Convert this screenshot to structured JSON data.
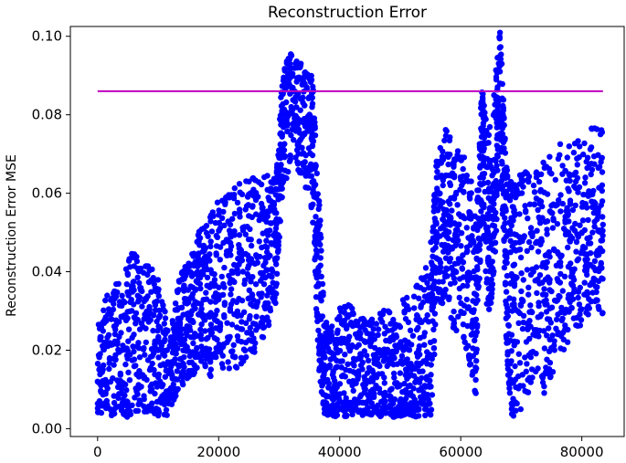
{
  "chart_data": {
    "type": "scatter",
    "title": "Reconstruction Error",
    "xlabel": "",
    "ylabel": "Reconstruction Error MSE",
    "xlim": [
      -4500,
      87000
    ],
    "ylim": [
      -0.002,
      0.1025
    ],
    "x_ticks": [
      0,
      20000,
      40000,
      60000,
      80000
    ],
    "x_tick_labels": [
      "0",
      "20000",
      "40000",
      "60000",
      "80000"
    ],
    "y_ticks": [
      0.0,
      0.02,
      0.04,
      0.06,
      0.08,
      0.1
    ],
    "y_tick_labels": [
      "0.00",
      "0.02",
      "0.04",
      "0.06",
      "0.08",
      "0.10"
    ],
    "grid": false,
    "threshold": {
      "y": 0.086,
      "x_start": 0,
      "x_end": 83500,
      "color": "#c000c0"
    },
    "series": [
      {
        "color": "#0000ff",
        "x": [
          0,
          2000,
          4000,
          6000,
          8000,
          10000,
          12000,
          13500,
          15000,
          16500,
          18000,
          20000,
          22000,
          24000,
          26000,
          28000,
          29500,
          30500,
          32000,
          34000,
          35500,
          36500,
          37500,
          39000,
          41000,
          43000,
          45000,
          47000,
          49000,
          51000,
          53000,
          55000,
          56000,
          57500,
          59000,
          61000,
          62500,
          63500,
          64500,
          65500,
          66500,
          67500,
          68500,
          70000,
          72000,
          74000,
          76000,
          78000,
          80000,
          82000,
          83500
        ],
        "y": [
          0.012,
          0.018,
          0.02,
          0.024,
          0.022,
          0.02,
          0.014,
          0.025,
          0.028,
          0.032,
          0.033,
          0.036,
          0.038,
          0.04,
          0.042,
          0.045,
          0.048,
          0.075,
          0.082,
          0.078,
          0.072,
          0.04,
          0.012,
          0.013,
          0.015,
          0.013,
          0.012,
          0.014,
          0.013,
          0.015,
          0.016,
          0.022,
          0.05,
          0.055,
          0.048,
          0.045,
          0.032,
          0.072,
          0.05,
          0.062,
          0.088,
          0.045,
          0.03,
          0.035,
          0.04,
          0.038,
          0.045,
          0.048,
          0.05,
          0.055,
          0.052
        ],
        "spread": [
          0.02,
          0.022,
          0.025,
          0.028,
          0.026,
          0.024,
          0.012,
          0.018,
          0.02,
          0.022,
          0.025,
          0.028,
          0.03,
          0.03,
          0.028,
          0.025,
          0.02,
          0.02,
          0.018,
          0.018,
          0.022,
          0.03,
          0.02,
          0.02,
          0.022,
          0.02,
          0.02,
          0.022,
          0.02,
          0.024,
          0.026,
          0.03,
          0.025,
          0.028,
          0.03,
          0.032,
          0.03,
          0.02,
          0.03,
          0.03,
          0.02,
          0.03,
          0.04,
          0.038,
          0.035,
          0.038,
          0.035,
          0.032,
          0.03,
          0.03,
          0.03
        ]
      }
    ]
  }
}
